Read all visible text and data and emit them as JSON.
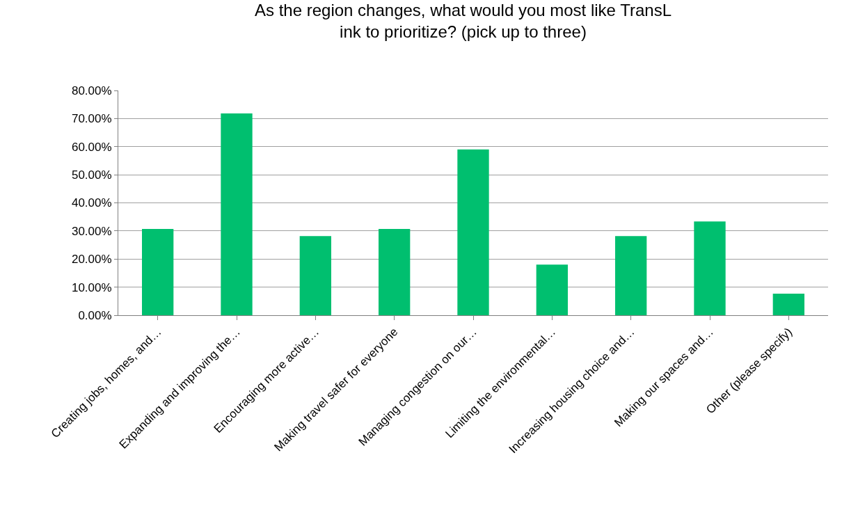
{
  "chart_data": {
    "type": "bar",
    "title": "As the region changes, what would you most like TransL\nink to prioritize? (pick up to three)",
    "categories": [
      "Creating jobs, homes, and…",
      "Expanding and improving the…",
      "Encouraging more active…",
      "Making travel safer for everyone",
      "Managing congestion on our…",
      "Limiting the environmental…",
      "Increasing housing choice and…",
      "Making our spaces and…",
      "Other (please specify)"
    ],
    "values": [
      30.7,
      71.8,
      28.2,
      30.7,
      59.0,
      18.0,
      28.2,
      33.4,
      7.7
    ],
    "color": "#00bf6f",
    "ylim": [
      0,
      80
    ],
    "yticks": [
      {
        "value": 0,
        "label": "0.00%"
      },
      {
        "value": 10,
        "label": "10.00%"
      },
      {
        "value": 20,
        "label": "20.00%"
      },
      {
        "value": 30,
        "label": "30.00%"
      },
      {
        "value": 40,
        "label": "40.00%"
      },
      {
        "value": 50,
        "label": "50.00%"
      },
      {
        "value": 60,
        "label": "60.00%"
      },
      {
        "value": 70,
        "label": "70.00%"
      },
      {
        "value": 80,
        "label": "80.00%"
      }
    ],
    "grid": "y",
    "legend": false
  }
}
